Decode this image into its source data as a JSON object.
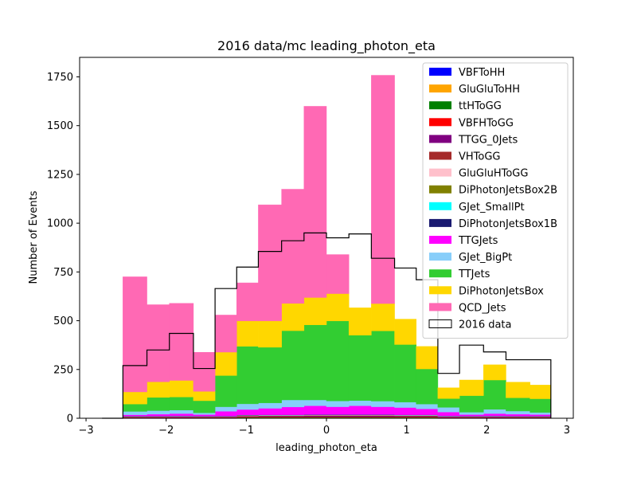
{
  "chart_data": {
    "type": "bar",
    "title": "2016 data/mc leading_photon_eta",
    "xlabel": "leading_photon_eta",
    "ylabel": "Number of Events",
    "xlim": [
      -3.08,
      3.08
    ],
    "ylim": [
      0,
      1850
    ],
    "xticks": [
      -3,
      -2,
      -1,
      0,
      1,
      2,
      3
    ],
    "yticks": [
      0,
      250,
      500,
      750,
      1000,
      1250,
      1500,
      1750
    ],
    "grid": false,
    "legend": "top-right",
    "bin_edges": [
      -2.8,
      -2.54,
      -2.24,
      -1.96,
      -1.66,
      -1.39,
      -1.12,
      -0.85,
      -0.56,
      -0.28,
      0.0,
      0.28,
      0.56,
      0.85,
      1.12,
      1.39,
      1.66,
      1.96,
      2.24,
      2.54,
      2.8
    ],
    "series": [
      {
        "name": "VBFToHH",
        "color": "#0000ff",
        "values": [
          0,
          1,
          1,
          1,
          1,
          1,
          2,
          2,
          2,
          2,
          2,
          2,
          2,
          2,
          2,
          1,
          1,
          1,
          1,
          1
        ]
      },
      {
        "name": "GluGluToHH",
        "color": "#ffa500",
        "values": [
          0,
          1,
          1,
          1,
          1,
          1,
          2,
          2,
          2,
          2,
          2,
          2,
          2,
          2,
          2,
          1,
          1,
          1,
          1,
          1
        ]
      },
      {
        "name": "ttHToGG",
        "color": "#008000",
        "values": [
          0,
          1,
          1,
          1,
          1,
          1,
          2,
          2,
          2,
          2,
          2,
          2,
          2,
          2,
          2,
          1,
          1,
          1,
          1,
          1
        ]
      },
      {
        "name": "VBFHToGG",
        "color": "#ff0000",
        "values": [
          0,
          1,
          1,
          1,
          1,
          1,
          2,
          2,
          2,
          2,
          2,
          2,
          2,
          2,
          2,
          1,
          1,
          1,
          1,
          1
        ]
      },
      {
        "name": "TTGG_0Jets",
        "color": "#800080",
        "values": [
          0,
          2,
          2,
          3,
          2,
          2,
          3,
          4,
          4,
          5,
          5,
          5,
          5,
          4,
          4,
          3,
          2,
          3,
          2,
          2
        ]
      },
      {
        "name": "VHToGG",
        "color": "#a52a2a",
        "values": [
          0,
          1,
          1,
          1,
          1,
          1,
          1,
          1,
          1,
          1,
          1,
          1,
          1,
          1,
          1,
          1,
          1,
          1,
          1,
          1
        ]
      },
      {
        "name": "GluGluHToGG",
        "color": "#ffc0cb",
        "values": [
          0,
          1,
          1,
          1,
          1,
          1,
          2,
          2,
          2,
          2,
          2,
          2,
          2,
          2,
          2,
          1,
          1,
          1,
          1,
          1
        ]
      },
      {
        "name": "DiPhotonJetsBox2B",
        "color": "#808000",
        "values": [
          0,
          1,
          1,
          1,
          1,
          1,
          1,
          1,
          1,
          1,
          1,
          1,
          1,
          1,
          1,
          1,
          1,
          1,
          1,
          1
        ]
      },
      {
        "name": "GJet_SmallPt",
        "color": "#00ffff",
        "values": [
          0,
          1,
          1,
          1,
          1,
          1,
          1,
          1,
          1,
          1,
          1,
          1,
          1,
          1,
          1,
          1,
          1,
          1,
          1,
          1
        ]
      },
      {
        "name": "DiPhotonJetsBox1B",
        "color": "#191970",
        "values": [
          0,
          1,
          1,
          1,
          1,
          1,
          1,
          1,
          1,
          1,
          1,
          1,
          1,
          1,
          1,
          1,
          1,
          1,
          1,
          1
        ]
      },
      {
        "name": "TTGJets",
        "color": "#ff00ff",
        "values": [
          0,
          7,
          10,
          12,
          8,
          25,
          28,
          33,
          40,
          45,
          40,
          45,
          40,
          37,
          30,
          20,
          8,
          12,
          10,
          8
        ]
      },
      {
        "name": "GJet_BigPt",
        "color": "#87cefa",
        "values": [
          0,
          17,
          18,
          18,
          9,
          23,
          29,
          28,
          36,
          30,
          30,
          27,
          29,
          28,
          25,
          24,
          12,
          22,
          16,
          11
        ]
      },
      {
        "name": "TTJets",
        "color": "#32cd32",
        "values": [
          0,
          38,
          68,
          67,
          62,
          160,
          295,
          285,
          355,
          385,
          410,
          335,
          360,
          295,
          180,
          45,
          85,
          150,
          68,
          70
        ]
      },
      {
        "name": "DiPhotonJetsBox",
        "color": "#ffd700",
        "values": [
          0,
          62,
          80,
          85,
          48,
          120,
          130,
          135,
          140,
          140,
          140,
          140,
          140,
          130,
          115,
          55,
          80,
          78,
          80,
          70
        ]
      },
      {
        "name": "QCD_Jets",
        "color": "#ff69b4",
        "values": [
          0,
          590,
          395,
          395,
          200,
          190,
          195,
          595,
          585,
          980,
          200,
          0,
          1170,
          0,
          0,
          0,
          0,
          0,
          0,
          0
        ]
      }
    ],
    "data_series": {
      "name": "2016 data",
      "values": [
        0,
        270,
        350,
        435,
        255,
        665,
        775,
        855,
        910,
        950,
        925,
        945,
        820,
        770,
        710,
        230,
        375,
        340,
        300,
        300
      ]
    }
  }
}
